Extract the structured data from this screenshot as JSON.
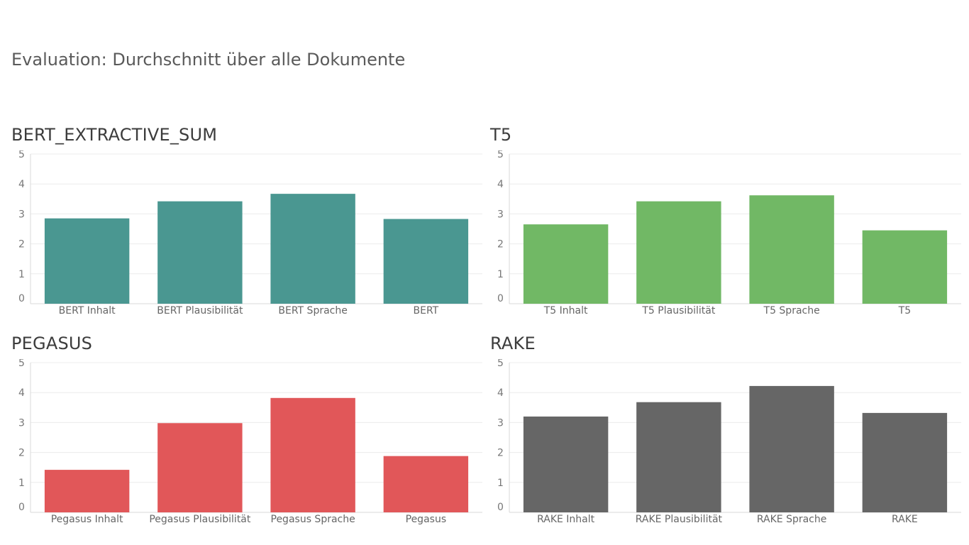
{
  "dashboard": {
    "title": "Evaluation: Durchschnitt über alle Dokumente"
  },
  "chart_data": [
    {
      "type": "bar",
      "title": "BERT_EXTRACTIVE_SUM",
      "color": "#4a9791",
      "ylim": [
        0,
        5
      ],
      "yticks": [
        "0",
        "1",
        "2",
        "3",
        "4",
        "5"
      ],
      "grid": true,
      "categories": [
        "BERT Inhalt",
        "BERT Plausibilität",
        "BERT Sprache",
        "BERT"
      ],
      "values": [
        2.85,
        3.42,
        3.67,
        2.83
      ]
    },
    {
      "type": "bar",
      "title": "T5",
      "color": "#71b865",
      "ylim": [
        0,
        5
      ],
      "yticks": [
        "0",
        "1",
        "2",
        "3",
        "4",
        "5"
      ],
      "grid": true,
      "categories": [
        "T5 Inhalt",
        "T5 Plausibilität",
        "T5 Sprache",
        "T5"
      ],
      "values": [
        2.65,
        3.42,
        3.62,
        2.45
      ]
    },
    {
      "type": "bar",
      "title": "PEGASUS",
      "color": "#e15759",
      "ylim": [
        0,
        5
      ],
      "yticks": [
        "0",
        "1",
        "2",
        "3",
        "4",
        "5"
      ],
      "grid": true,
      "categories": [
        "Pegasus Inhalt",
        "Pegasus Plausibilität",
        "Pegasus Sprache",
        "Pegasus"
      ],
      "values": [
        1.42,
        2.98,
        3.82,
        1.88
      ]
    },
    {
      "type": "bar",
      "title": "RAKE",
      "color": "#666666",
      "ylim": [
        0,
        5
      ],
      "yticks": [
        "0",
        "1",
        "2",
        "3",
        "4",
        "5"
      ],
      "grid": true,
      "categories": [
        "RAKE Inhalt",
        "RAKE Plausibilität",
        "RAKE Sprache",
        "RAKE"
      ],
      "values": [
        3.2,
        3.68,
        4.22,
        3.32
      ]
    }
  ]
}
